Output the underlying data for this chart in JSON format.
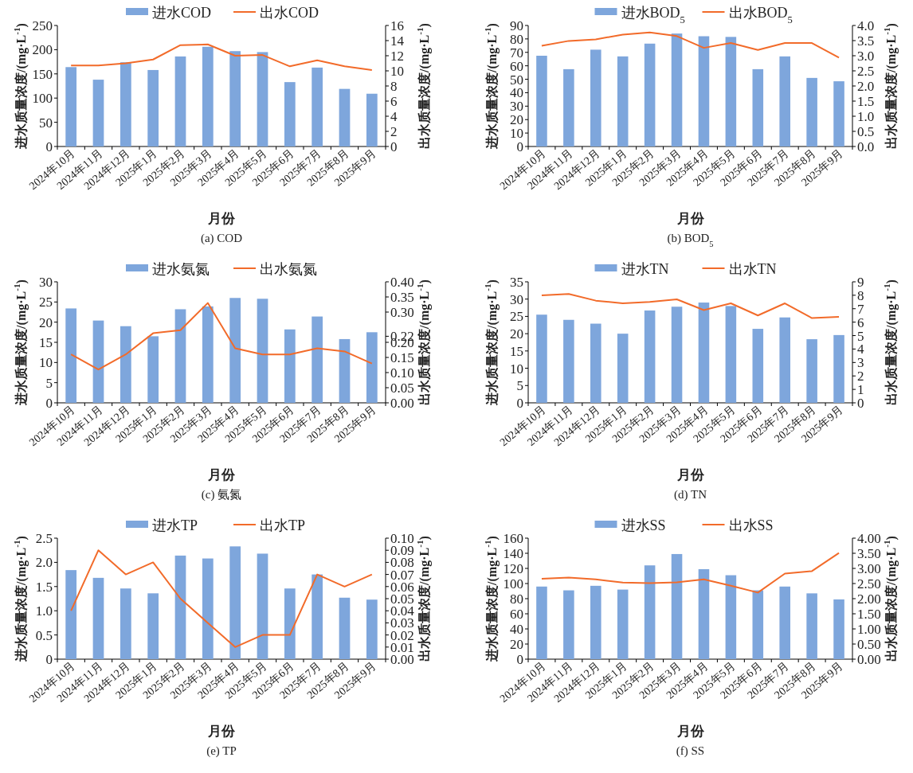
{
  "chart_data": [
    {
      "type": "bar",
      "title": "(a) COD",
      "xlabel": "月份",
      "ylabel": "进水质量浓度/(mg·L$^{-1}$)",
      "y2label": "出水质量浓度/(mg·L$^{-1}$)",
      "legend": "top",
      "categories": [
        "2024年10月",
        "2024年11月",
        "2024年12月",
        "2025年1月",
        "2025年2月",
        "2025年3月",
        "2025年4月",
        "2025年5月",
        "2025年6月",
        "2025年7月",
        "2025年8月",
        "2025年9月"
      ],
      "ylim": [
        0,
        250
      ],
      "yticks": [
        0,
        50,
        100,
        150,
        200,
        250
      ],
      "y2lim": [
        0,
        16
      ],
      "y2ticks": [
        0,
        2,
        4,
        6,
        8,
        10,
        12,
        14,
        16
      ],
      "series": [
        {
          "name": "进水COD",
          "color": "#7ea6dc",
          "values": [
            164,
            138,
            174,
            158,
            186,
            206,
            197,
            195,
            133,
            163,
            119,
            109
          ]
        },
        {
          "name": "出水COD",
          "type": "line",
          "axis": "y2",
          "color": "#f26b2a",
          "values": [
            10.7,
            10.7,
            11.0,
            11.5,
            13.4,
            13.5,
            12.0,
            12.1,
            10.6,
            11.4,
            10.6,
            10.1
          ]
        }
      ]
    },
    {
      "type": "bar",
      "title": "(b) BOD$_{5}$",
      "xlabel": "月份",
      "ylabel": "进水质量浓度/(mg·L$^{-1}$)",
      "y2label": "出水质量浓度/(mg·L$^{-1}$)",
      "legend": "top",
      "categories": [
        "2024年10月",
        "2024年11月",
        "2024年12月",
        "2025年1月",
        "2025年2月",
        "2025年3月",
        "2025年4月",
        "2025年5月",
        "2025年6月",
        "2025年7月",
        "2025年8月",
        "2025年9月"
      ],
      "ylim": [
        0,
        90
      ],
      "yticks": [
        0,
        10,
        20,
        30,
        40,
        50,
        60,
        70,
        80,
        90
      ],
      "y2lim": [
        0,
        4
      ],
      "y2ticks": [
        {
          "value": 0,
          "label": "0.0"
        },
        0.5,
        {
          "value": 1,
          "label": "1.0"
        },
        1.5,
        {
          "value": 2,
          "label": "2.0"
        },
        2.5,
        {
          "value": 3,
          "label": "3.0"
        },
        3.5,
        {
          "value": 4,
          "label": "4.0"
        }
      ],
      "series": [
        {
          "name": "进水BOD$_{5}$",
          "color": "#7ea6dc",
          "values": [
            67.5,
            57.5,
            72,
            67,
            76.5,
            84,
            82,
            81.5,
            57.5,
            67,
            51,
            48.5
          ]
        },
        {
          "name": "出水BOD$_{5}$",
          "type": "line",
          "axis": "y2",
          "color": "#f26b2a",
          "values": [
            3.33,
            3.49,
            3.54,
            3.7,
            3.77,
            3.65,
            3.26,
            3.42,
            3.19,
            3.42,
            3.42,
            2.94
          ]
        }
      ]
    },
    {
      "type": "bar",
      "title": "(c) 氨氮",
      "xlabel": "月份",
      "ylabel": "进水质量浓度/(mg·L$^{-1}$)",
      "y2label": "出水质量浓度/(mg·L$^{-1}$)",
      "legend": "top",
      "categories": [
        "2024年10月",
        "2024年11月",
        "2024年12月",
        "2025年1月",
        "2025年2月",
        "2025年3月",
        "2025年4月",
        "2025年5月",
        "2025年6月",
        "2025年7月",
        "2025年8月",
        "2025年9月"
      ],
      "ylim": [
        0,
        30
      ],
      "yticks": [
        0,
        5,
        10,
        15,
        20,
        25,
        30
      ],
      "y2lim": [
        0,
        0.4
      ],
      "y2ticks": [
        {
          "value": 0,
          "label": "0.00"
        },
        0.05,
        {
          "value": 0.1,
          "label": "0.10"
        },
        0.15,
        {
          "value": 0.2,
          "label": "0.20"
        },
        0.22,
        {
          "value": 0.3,
          "label": "0.30"
        },
        0.35,
        {
          "value": 0.4,
          "label": "0.40"
        }
      ],
      "series": [
        {
          "name": "进水氨氮",
          "color": "#7ea6dc",
          "values": [
            23.4,
            20.4,
            19,
            16.5,
            23.2,
            23.9,
            26,
            25.8,
            18.2,
            21.4,
            15.8,
            17.5
          ]
        },
        {
          "name": "出水氨氮",
          "type": "line",
          "axis": "y2",
          "color": "#f26b2a",
          "values": [
            0.16,
            0.11,
            0.16,
            0.23,
            0.24,
            0.33,
            0.18,
            0.16,
            0.16,
            0.18,
            0.17,
            0.13
          ]
        }
      ]
    },
    {
      "type": "bar",
      "title": "(d) TN",
      "xlabel": "月份",
      "ylabel": "进水质量浓度/(mg·L$^{-1}$)",
      "y2label": "出水质量浓度/(mg·L$^{-1}$)",
      "legend": "top",
      "categories": [
        "2024年10月",
        "2024年11月",
        "2024年12月",
        "2025年1月",
        "2025年2月",
        "2025年3月",
        "2025年4月",
        "2025年5月",
        "2025年6月",
        "2025年7月",
        "2025年8月",
        "2025年9月"
      ],
      "ylim": [
        0,
        35
      ],
      "yticks": [
        0,
        5,
        10,
        15,
        20,
        25,
        30,
        35
      ],
      "y2lim": [
        0,
        9
      ],
      "y2ticks": [
        0,
        1,
        2,
        3,
        4,
        5,
        6,
        7,
        8,
        9
      ],
      "series": [
        {
          "name": "进水TN",
          "color": "#7ea6dc",
          "values": [
            25.5,
            24,
            22.9,
            20,
            26.7,
            27.8,
            29,
            28,
            21.4,
            24.7,
            18.4,
            19.6
          ]
        },
        {
          "name": "出水TN",
          "type": "line",
          "axis": "y2",
          "color": "#f26b2a",
          "values": [
            8.0,
            8.1,
            7.6,
            7.4,
            7.5,
            7.7,
            6.9,
            7.4,
            6.5,
            7.4,
            6.3,
            6.4
          ]
        }
      ]
    },
    {
      "type": "bar",
      "title": "(e) TP",
      "xlabel": "月份",
      "ylabel": "进水质量浓度/(mg·L$^{-1}$)",
      "y2label": "出水质量浓度/(mg·L$^{-1}$)",
      "legend": "top",
      "categories": [
        "2024年10月",
        "2024年11月",
        "2024年12月",
        "2025年1月",
        "2025年2月",
        "2025年3月",
        "2025年4月",
        "2025年5月",
        "2025年6月",
        "2025年7月",
        "2025年8月",
        "2025年9月"
      ],
      "ylim": [
        0,
        2.5
      ],
      "yticks": [
        0,
        0.5,
        {
          "value": 1,
          "label": "1.0"
        },
        1.5,
        {
          "value": 2,
          "label": "2.0"
        },
        2.5
      ],
      "y2lim": [
        0,
        0.1
      ],
      "y2ticks": [
        {
          "value": 0,
          "label": "0.00"
        },
        0.01,
        0.02,
        0.03,
        0.04,
        0.05,
        0.06,
        0.07,
        0.08,
        0.09,
        {
          "value": 0.1,
          "label": "0.10"
        }
      ],
      "series": [
        {
          "name": "进水TP",
          "color": "#7ea6dc",
          "values": [
            1.84,
            1.68,
            1.46,
            1.36,
            2.14,
            2.08,
            2.33,
            2.18,
            1.46,
            1.75,
            1.27,
            1.23
          ]
        },
        {
          "name": "出水TP",
          "type": "line",
          "axis": "y2",
          "color": "#f26b2a",
          "values": [
            0.04,
            0.09,
            0.07,
            0.08,
            0.05,
            0.03,
            0.01,
            0.02,
            0.02,
            0.07,
            0.06,
            0.07
          ]
        }
      ]
    },
    {
      "type": "bar",
      "title": "(f) SS",
      "xlabel": "月份",
      "ylabel": "进水质量浓度/(mg·L$^{-1}$)",
      "y2label": "出水质量浓度/(mg·L$^{-1}$)",
      "legend": "top",
      "categories": [
        "2024年10月",
        "2024年11月",
        "2024年12月",
        "2025年1月",
        "2025年2月",
        "2025年3月",
        "2025年4月",
        "2025年5月",
        "2025年6月",
        "2025年7月",
        "2025年8月",
        "2025年9月"
      ],
      "ylim": [
        0,
        160
      ],
      "yticks": [
        0,
        20,
        40,
        60,
        80,
        100,
        120,
        140,
        160
      ],
      "y2lim": [
        0,
        4
      ],
      "y2ticks": [
        {
          "value": 0,
          "label": "0.00"
        },
        {
          "value": 0.5,
          "label": "0.50"
        },
        {
          "value": 1,
          "label": "1.00"
        },
        {
          "value": 1.5,
          "label": "1.50"
        },
        {
          "value": 2,
          "label": "2.00"
        },
        {
          "value": 2.5,
          "label": "2.50"
        },
        {
          "value": 3,
          "label": "3.00"
        },
        {
          "value": 3.5,
          "label": "3.50"
        },
        {
          "value": 4,
          "label": "4.00"
        }
      ],
      "series": [
        {
          "name": "进水SS",
          "color": "#7ea6dc",
          "values": [
            96,
            91,
            97,
            92,
            124,
            139,
            119,
            111,
            91,
            96,
            87,
            79
          ]
        },
        {
          "name": "出水SS",
          "type": "line",
          "axis": "y2",
          "color": "#f26b2a",
          "values": [
            2.66,
            2.7,
            2.64,
            2.53,
            2.51,
            2.54,
            2.64,
            2.43,
            2.2,
            2.83,
            2.91,
            3.51
          ]
        }
      ]
    }
  ]
}
